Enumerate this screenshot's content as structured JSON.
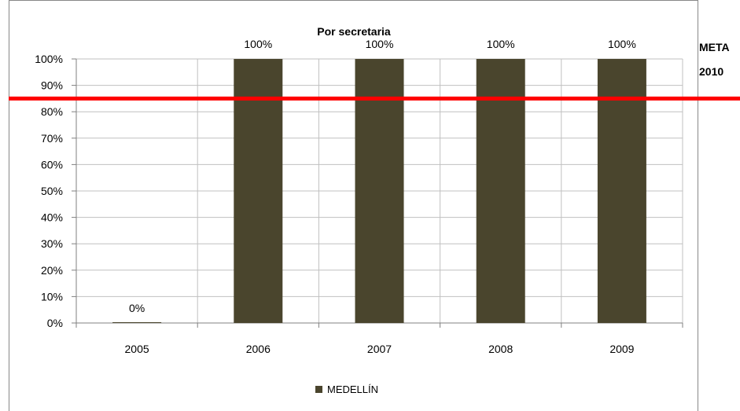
{
  "chart_data": {
    "type": "bar",
    "title": "Por secretaria",
    "categories": [
      "2005",
      "2006",
      "2007",
      "2008",
      "2009"
    ],
    "series": [
      {
        "name": "MEDELLÍN",
        "values": [
          0,
          100,
          100,
          100,
          100
        ],
        "color": "#4a452d"
      }
    ],
    "data_labels": [
      "0%",
      "100%",
      "100%",
      "100%",
      "100%"
    ],
    "y_ticks": [
      "0%",
      "10%",
      "20%",
      "30%",
      "40%",
      "50%",
      "60%",
      "70%",
      "80%",
      "90%",
      "100%"
    ],
    "ylim": [
      0,
      100
    ],
    "grid": true,
    "legend_position": "bottom",
    "reference_line": {
      "value": 85,
      "color": "#ff0000",
      "label_line1": "META",
      "label_line2": "2010"
    }
  }
}
